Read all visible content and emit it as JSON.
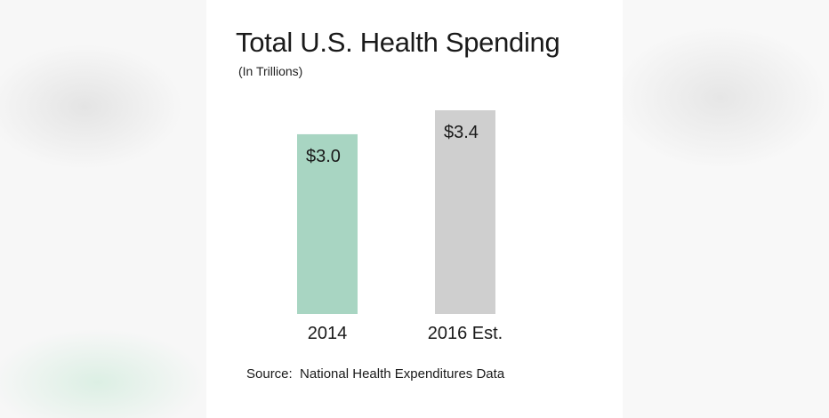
{
  "chart_data": {
    "type": "bar",
    "title": "Total U.S. Health Spending",
    "subtitle": "(In Trillions)",
    "categories": [
      "2014",
      "2016 Est."
    ],
    "values": [
      3.0,
      3.4
    ],
    "data_labels": [
      "$3.0",
      "$3.4"
    ],
    "colors": [
      "#a8d5c2",
      "#cfcfcf"
    ],
    "grid": false,
    "legend": "none",
    "ylim": [
      0,
      3.4
    ],
    "source": "Source:  National Health Expenditures Data"
  }
}
